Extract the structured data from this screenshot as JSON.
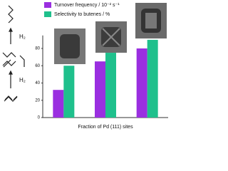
{
  "chart_data": {
    "type": "bar",
    "categories": [
      null,
      null,
      null
    ],
    "series": [
      {
        "name": "Turnover frequency / 10⁻² s⁻¹",
        "color": "#9a2fe0",
        "values": [
          32,
          65,
          80
        ]
      },
      {
        "name": "Selectivity to butenes / %",
        "color": "#1fc08c",
        "values": [
          60,
          75,
          90
        ]
      }
    ],
    "xlabel": "Fraction of Pd (111) sites",
    "ylim": [
      0,
      95
    ],
    "yticks": [
      0,
      20,
      40,
      60,
      80
    ],
    "legend": "top",
    "annotations": [
      "H₂",
      "H₂"
    ]
  }
}
